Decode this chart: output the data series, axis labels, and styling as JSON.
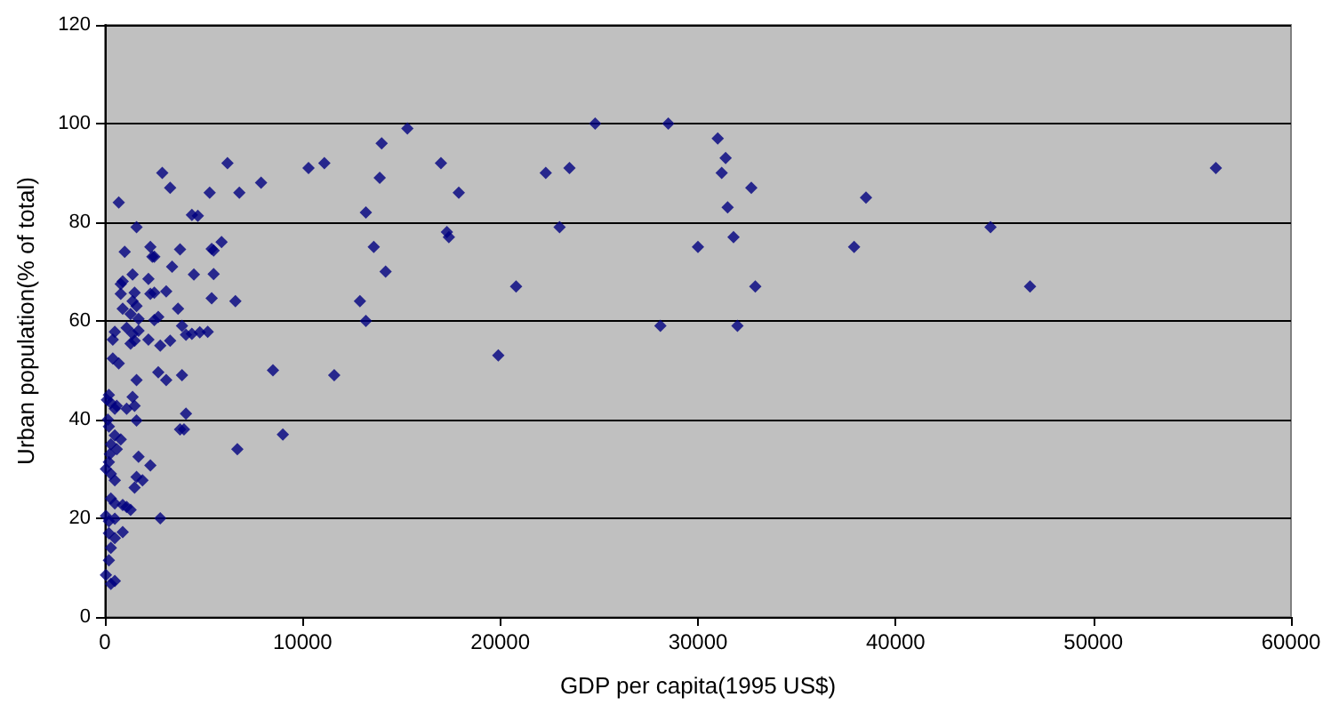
{
  "chart_data": {
    "type": "scatter",
    "xlabel": "GDP per capita(1995 US$)",
    "ylabel": "Urban population(% of total)",
    "xlim": [
      0,
      60000
    ],
    "xticks": [
      0,
      10000,
      20000,
      30000,
      40000,
      50000,
      60000
    ],
    "ylim": [
      0,
      120
    ],
    "yticks": [
      0,
      20,
      40,
      60,
      80,
      100,
      120
    ],
    "grid": "y",
    "marker": "diamond",
    "series": [
      {
        "color": "#000080",
        "x": [
          6200,
          6800,
          6600,
          6700,
          7900,
          8500,
          9000,
          10300,
          11100,
          11600,
          12900,
          13200,
          13200,
          13600,
          13900,
          14000,
          14200,
          15300,
          17000,
          17300,
          17400,
          17900,
          19900,
          20800,
          22300,
          23000,
          23500,
          24800,
          28100,
          28500,
          31000,
          31200,
          31400,
          31500,
          31800,
          32000,
          32700,
          32900,
          37900,
          38500,
          44800,
          46800,
          56200,
          30000,
          2900,
          3300,
          700,
          5300,
          4400,
          4700,
          1600,
          1000,
          2300,
          2400,
          2500,
          3800,
          3400,
          5400,
          5500,
          5900,
          4500,
          5500,
          1400,
          900,
          800,
          2200,
          800,
          1500,
          2300,
          2500,
          3100,
          900,
          1400,
          1600,
          1300,
          3700,
          5400,
          1700,
          2500,
          2700,
          500,
          400,
          1100,
          1400,
          1700,
          1300,
          1500,
          2200,
          2800,
          3300,
          3900,
          4100,
          4400,
          4800,
          5200,
          400,
          700,
          1600,
          2700,
          3100,
          3900,
          200,
          300,
          500,
          600,
          1100,
          1400,
          1500,
          1600,
          4100,
          3800,
          4000,
          200,
          500,
          800,
          300,
          600,
          200,
          300,
          500,
          1700,
          2300,
          1600,
          1900,
          1500,
          300,
          500,
          900,
          1300,
          1100,
          2800,
          50,
          200,
          500,
          200,
          500,
          900,
          300,
          200,
          50,
          300,
          500,
          100,
          150,
          250,
          50
        ],
        "values": [
          92,
          86,
          64,
          34,
          88,
          50,
          37,
          91,
          92,
          49,
          64,
          82,
          60,
          75,
          89,
          96,
          70,
          99,
          92,
          78,
          77,
          86,
          53,
          67,
          90,
          79,
          91,
          100,
          59,
          100,
          97,
          90,
          93,
          83,
          77,
          59,
          87,
          67,
          75,
          85,
          79,
          67,
          91,
          75,
          90,
          87,
          84,
          86,
          81.5,
          81.3,
          79,
          74,
          75,
          73,
          73,
          74.5,
          71,
          74.6,
          74.3,
          76,
          69.4,
          69.5,
          69.4,
          68,
          67.5,
          68.5,
          65.5,
          65.7,
          65.5,
          65.7,
          66,
          62.5,
          64,
          63,
          61.4,
          62.5,
          64.6,
          60.4,
          60.2,
          60.8,
          57.8,
          56.2,
          58.6,
          57.4,
          58,
          55.4,
          56,
          56.2,
          55,
          56,
          59,
          57.2,
          57.4,
          57.7,
          57.8,
          52.4,
          51.4,
          48,
          49.6,
          48,
          49,
          45,
          43.4,
          42.2,
          42.8,
          42.2,
          44.6,
          42.8,
          39.8,
          41.2,
          38,
          38,
          38.6,
          36.8,
          36,
          35,
          34,
          31.4,
          29,
          27.7,
          32.5,
          30.7,
          28.4,
          27.7,
          26.2,
          24,
          23,
          22.7,
          21.7,
          22.3,
          20,
          20.5,
          19.4,
          19.9,
          17,
          16,
          17.2,
          14,
          11.5,
          8.5,
          6.7,
          7.3,
          44,
          40,
          33,
          30
        ]
      }
    ]
  }
}
